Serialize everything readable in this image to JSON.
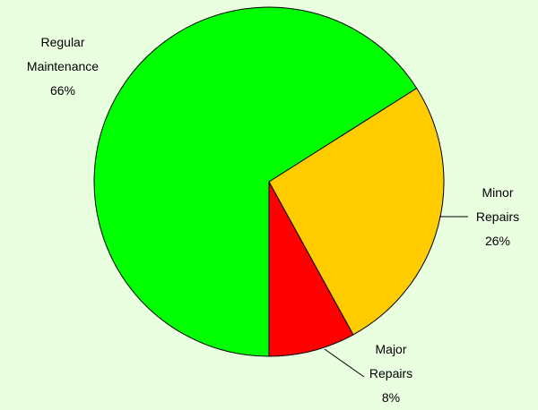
{
  "chart_data": {
    "type": "pie",
    "categories": [
      "Major Repairs",
      "Minor Repairs",
      "Regular Maintenance"
    ],
    "values": [
      8,
      26,
      66
    ],
    "value_labels": [
      "8%",
      "26%",
      "66%"
    ],
    "colors": [
      "#ff0000",
      "#ffcc00",
      "#00ff00"
    ]
  }
}
